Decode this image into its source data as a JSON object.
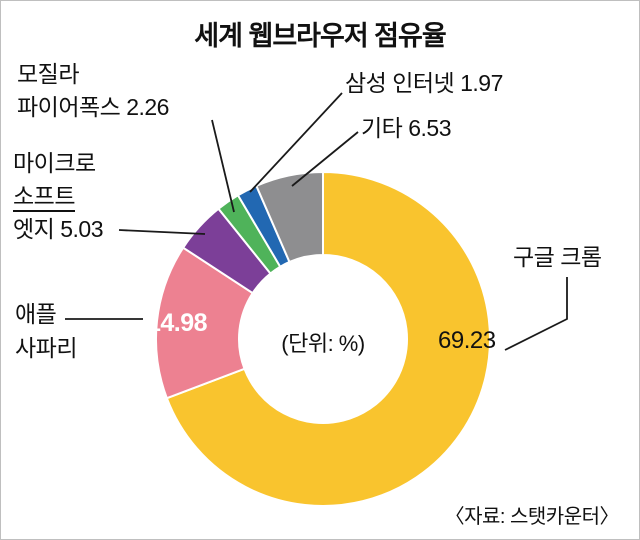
{
  "chart_data": {
    "type": "pie",
    "donut": true,
    "start_angle": "top",
    "direction": "clockwise",
    "title": "세계 웹브라우저 점유율",
    "unit_label": "(단위: %)",
    "source": "〈자료: 스탯카운터〉",
    "series": [
      {
        "key": "google-chrome",
        "name": "구글 크롬",
        "value": 69.23,
        "color": "#F9C42E"
      },
      {
        "key": "apple-safari",
        "name": "애플 사파리",
        "value": 14.98,
        "color": "#ED8191"
      },
      {
        "key": "microsoft-edge",
        "name": "마이크로소프트 엣지",
        "value": 5.03,
        "color": "#7C3F98"
      },
      {
        "key": "mozilla-firefox",
        "name": "모질라 파이어폭스",
        "value": 2.26,
        "color": "#4FB35A"
      },
      {
        "key": "samsung-internet",
        "name": "삼성 인터넷",
        "value": 1.97,
        "color": "#2268B2"
      },
      {
        "key": "etc",
        "name": "기타",
        "value": 6.53,
        "color": "#8E8E90"
      }
    ]
  },
  "callouts": {
    "mozilla": {
      "line1": "모질라",
      "line2": "파이어폭스"
    },
    "microsoft": {
      "line1": "마이크로",
      "line2": "소프트",
      "line3": "엣지"
    },
    "apple": {
      "line1": "애플",
      "line2": "사파리"
    }
  }
}
